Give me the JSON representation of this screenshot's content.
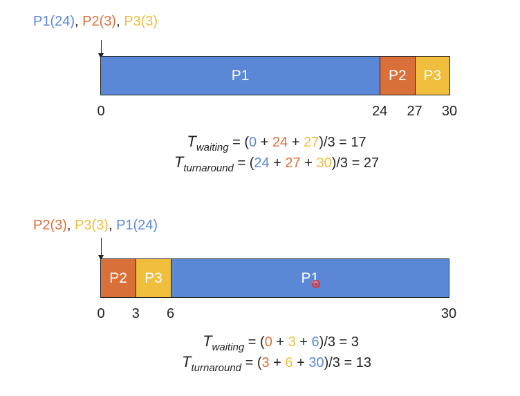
{
  "colors": {
    "P1": "#5B88D6",
    "P2": "#D9703A",
    "P3": "#F0BD3C",
    "text": "#222222"
  },
  "schedules": [
    {
      "order": [
        {
          "label": "P1(24)",
          "process": "P1"
        },
        {
          "label": "P2(3)",
          "process": "P2"
        },
        {
          "label": "P3(3)",
          "process": "P3"
        }
      ],
      "segments": [
        {
          "label": "P1",
          "process": "P1",
          "start": 0,
          "end": 24
        },
        {
          "label": "P2",
          "process": "P2",
          "start": 24,
          "end": 27
        },
        {
          "label": "P3",
          "process": "P3",
          "start": 27,
          "end": 30
        }
      ],
      "ticks": [
        "0",
        "24",
        "27",
        "30"
      ],
      "waiting": {
        "symbol": "T",
        "subscript": "waiting",
        "terms": [
          {
            "text": "0",
            "process": "P1"
          },
          {
            "text": "24",
            "process": "P2"
          },
          {
            "text": "27",
            "process": "P3"
          }
        ],
        "divisor": "3",
        "result": "17"
      },
      "turnaround": {
        "symbol": "T",
        "subscript": "turnaround",
        "terms": [
          {
            "text": "24",
            "process": "P1"
          },
          {
            "text": "27",
            "process": "P2"
          },
          {
            "text": "30",
            "process": "P3"
          }
        ],
        "divisor": "3",
        "result": "27"
      }
    },
    {
      "order": [
        {
          "label": "P2(3)",
          "process": "P2"
        },
        {
          "label": "P3(3)",
          "process": "P3"
        },
        {
          "label": "P1(24)",
          "process": "P1"
        }
      ],
      "segments": [
        {
          "label": "P2",
          "process": "P2",
          "start": 0,
          "end": 3
        },
        {
          "label": "P3",
          "process": "P3",
          "start": 3,
          "end": 6
        },
        {
          "label": "P1",
          "process": "P1",
          "start": 6,
          "end": 30
        }
      ],
      "ticks": [
        "0",
        "3",
        "6",
        "30"
      ],
      "waiting": {
        "symbol": "T",
        "subscript": "waiting",
        "terms": [
          {
            "text": "0",
            "process": "P2"
          },
          {
            "text": "3",
            "process": "P3"
          },
          {
            "text": "6",
            "process": "P1"
          }
        ],
        "divisor": "3",
        "result": "3"
      },
      "turnaround": {
        "symbol": "T",
        "subscript": "turnaround",
        "terms": [
          {
            "text": "3",
            "process": "P2"
          },
          {
            "text": "6",
            "process": "P3"
          },
          {
            "text": "30",
            "process": "P1"
          }
        ],
        "divisor": "3",
        "result": "13"
      }
    }
  ]
}
